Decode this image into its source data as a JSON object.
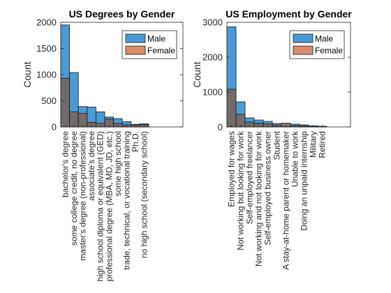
{
  "chart_data": [
    {
      "type": "bar",
      "title": "US Degrees by Gender",
      "xlabel": "",
      "ylabel": "Count",
      "ylim": [
        0,
        2000
      ],
      "yticks": [
        0,
        500,
        1000,
        1500,
        2000
      ],
      "grid": false,
      "legend_position": "top-right",
      "categories": [
        "bachelor's degree",
        "some college credit, no degree",
        "master's degree (non-professional)",
        "associate's degree",
        "high school diploma or equivalent (GED)",
        "professional degree (MBA, MD, JD, etc.)",
        "some high school",
        "trade, technical, or vocational training",
        "Ph.D.",
        "no high school (secondary school)"
      ],
      "series": [
        {
          "name": "Male",
          "color": "#4a9ad4",
          "values": [
            1950,
            1040,
            390,
            380,
            290,
            190,
            160,
            100,
            50,
            60
          ]
        },
        {
          "name": "Female",
          "color": "#d98d6d",
          "values": [
            930,
            290,
            260,
            90,
            70,
            150,
            70,
            40,
            40,
            50
          ]
        }
      ]
    },
    {
      "type": "bar",
      "title": "US Employment by Gender",
      "xlabel": "",
      "ylabel": "Count",
      "ylim": [
        0,
        3000
      ],
      "yticks": [
        0,
        1000,
        2000,
        3000
      ],
      "grid": false,
      "legend_position": "top-right",
      "categories": [
        "Employed for wages",
        "Not working but looking for work",
        "Self-employed freelancer",
        "Not working and not looking for work",
        "Self-employed business owner",
        "Student",
        "A stay-at-home parent or homemaker",
        "Unable to work",
        "Doing an unpaid internship",
        "Military",
        "Retired"
      ],
      "series": [
        {
          "name": "Male",
          "color": "#4a9ad4",
          "values": [
            2870,
            720,
            260,
            200,
            160,
            100,
            30,
            80,
            60,
            35,
            20
          ]
        },
        {
          "name": "Female",
          "color": "#d98d6d",
          "values": [
            1080,
            360,
            140,
            110,
            90,
            55,
            110,
            40,
            30,
            10,
            10
          ]
        }
      ]
    }
  ]
}
